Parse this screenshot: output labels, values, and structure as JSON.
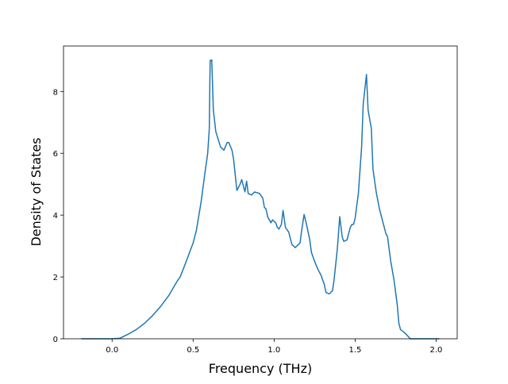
{
  "chart_data": {
    "type": "line",
    "xlabel": "Frequency (THz)",
    "ylabel": "Density of States",
    "x": [
      -0.19,
      0.0,
      0.05,
      0.08,
      0.1,
      0.15,
      0.2,
      0.25,
      0.3,
      0.35,
      0.4,
      0.42,
      0.45,
      0.5,
      0.52,
      0.55,
      0.57,
      0.59,
      0.6,
      0.605,
      0.615,
      0.625,
      0.64,
      0.67,
      0.69,
      0.71,
      0.72,
      0.74,
      0.75,
      0.77,
      0.79,
      0.8,
      0.82,
      0.83,
      0.84,
      0.86,
      0.88,
      0.91,
      0.93,
      0.94,
      0.95,
      0.96,
      0.98,
      0.99,
      1.01,
      1.02,
      1.03,
      1.045,
      1.055,
      1.07,
      1.09,
      1.11,
      1.13,
      1.16,
      1.17,
      1.185,
      1.2,
      1.22,
      1.23,
      1.25,
      1.27,
      1.29,
      1.31,
      1.32,
      1.34,
      1.36,
      1.37,
      1.39,
      1.405,
      1.42,
      1.43,
      1.45,
      1.47,
      1.48,
      1.49,
      1.5,
      1.52,
      1.54,
      1.55,
      1.57,
      1.58,
      1.6,
      1.61,
      1.63,
      1.65,
      1.67,
      1.69,
      1.7,
      1.72,
      1.74,
      1.76,
      1.77,
      1.78,
      1.8,
      1.82,
      1.84,
      2.02
    ],
    "series": [
      {
        "color": "#1f77b4",
        "values": [
          0,
          0,
          0.02,
          0.1,
          0.15,
          0.3,
          0.5,
          0.75,
          1.05,
          1.4,
          1.85,
          2.0,
          2.4,
          3.1,
          3.5,
          4.45,
          5.25,
          6.0,
          6.8,
          9.0,
          9.02,
          7.4,
          6.7,
          6.2,
          6.1,
          6.35,
          6.35,
          6.1,
          5.8,
          4.8,
          5.0,
          5.15,
          4.75,
          5.1,
          4.7,
          4.65,
          4.75,
          4.7,
          4.55,
          4.25,
          4.2,
          3.95,
          3.75,
          3.85,
          3.75,
          3.6,
          3.55,
          3.7,
          4.15,
          3.6,
          3.45,
          3.05,
          2.95,
          3.1,
          3.5,
          4.02,
          3.7,
          3.2,
          2.8,
          2.5,
          2.25,
          2.05,
          1.75,
          1.5,
          1.45,
          1.55,
          1.9,
          2.9,
          3.95,
          3.3,
          3.15,
          3.2,
          3.6,
          3.7,
          3.7,
          3.9,
          4.7,
          6.2,
          7.6,
          8.55,
          7.4,
          6.8,
          5.5,
          4.75,
          4.2,
          3.8,
          3.4,
          3.3,
          2.5,
          1.9,
          1.1,
          0.5,
          0.3,
          0.22,
          0.12,
          0,
          0
        ]
      }
    ],
    "xlim": [
      -0.3,
      2.13
    ],
    "xticks": [
      {
        "value": 0,
        "label": "0.0"
      },
      0.5,
      {
        "value": 1,
        "label": "1.0"
      },
      1.5,
      {
        "value": 2,
        "label": "2.0"
      }
    ],
    "ylim": [
      0,
      9.47
    ],
    "yticks": [
      0,
      2,
      4,
      6,
      8
    ]
  }
}
